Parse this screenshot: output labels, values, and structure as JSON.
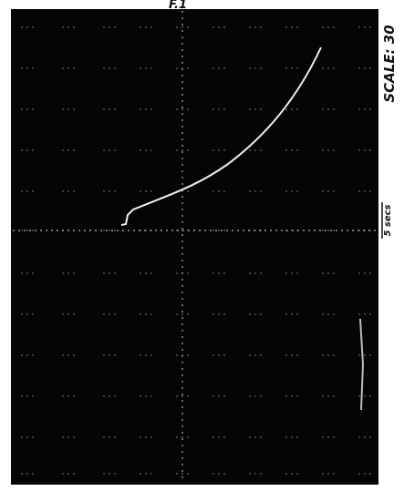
{
  "header": {
    "title": "F.1"
  },
  "annotations": {
    "scale": "SCALE: 30",
    "time": "5 secs"
  }
}
